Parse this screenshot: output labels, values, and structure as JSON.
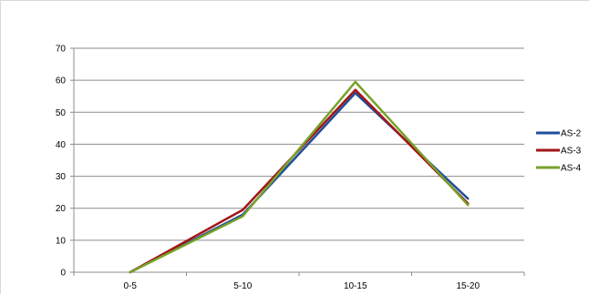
{
  "chart_data": {
    "type": "line",
    "categories": [
      "0-5",
      "5-10",
      "10-15",
      "15-20"
    ],
    "ylim": [
      0,
      70
    ],
    "yticks": [
      0,
      10,
      20,
      30,
      40,
      50,
      60,
      70
    ],
    "grid": true,
    "legend_position": "right",
    "series": [
      {
        "name": "AS-2",
        "color": "#1f4e9a",
        "values": [
          0,
          18,
          56,
          23
        ]
      },
      {
        "name": "AS-3",
        "color": "#a31515",
        "values": [
          0,
          19.5,
          57,
          21.5
        ]
      },
      {
        "name": "AS-4",
        "color": "#77a22a",
        "values": [
          0,
          17.5,
          59.5,
          21
        ]
      }
    ]
  }
}
